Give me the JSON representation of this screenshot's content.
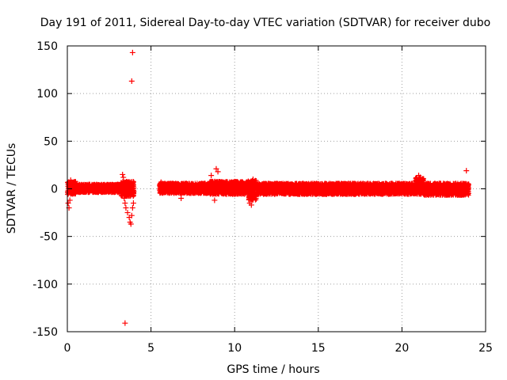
{
  "chart_data": {
    "type": "scatter",
    "title": "Day 191 of 2011, Sidereal Day-to-day VTEC variation (SDTVAR) for receiver dubo",
    "xlabel": "GPS time / hours",
    "ylabel": "SDTVAR / TECUs",
    "xlim": [
      0,
      25
    ],
    "ylim": [
      -150,
      150
    ],
    "xticks": [
      0,
      5,
      10,
      15,
      20,
      25
    ],
    "yticks": [
      -150,
      -100,
      -50,
      0,
      50,
      100,
      150
    ],
    "grid": true,
    "marker": "+",
    "color": "#ff0000",
    "series": [
      {
        "name": "SDTVAR",
        "bands": [
          {
            "x": [
              0.0,
              0.5
            ],
            "ymin": -6,
            "ymax": 8
          },
          {
            "x": [
              0.5,
              3.2
            ],
            "ymin": -4,
            "ymax": 5
          },
          {
            "x": [
              3.2,
              4.0
            ],
            "ymin": -8,
            "ymax": 8
          },
          {
            "x": [
              5.5,
              8.5
            ],
            "ymin": -5,
            "ymax": 6
          },
          {
            "x": [
              8.5,
              10.8
            ],
            "ymin": -6,
            "ymax": 8
          },
          {
            "x": [
              10.8,
              11.3
            ],
            "ymin": -12,
            "ymax": 9
          },
          {
            "x": [
              11.3,
              20.8
            ],
            "ymin": -6,
            "ymax": 6
          },
          {
            "x": [
              20.8,
              21.3
            ],
            "ymin": -6,
            "ymax": 12
          },
          {
            "x": [
              21.3,
              24.0
            ],
            "ymin": -7,
            "ymax": 6
          }
        ],
        "points": [
          [
            0.05,
            -15
          ],
          [
            0.1,
            -20
          ],
          [
            0.15,
            -12
          ],
          [
            0.2,
            9
          ],
          [
            0.25,
            7
          ],
          [
            3.3,
            15
          ],
          [
            3.35,
            12
          ],
          [
            3.4,
            -10
          ],
          [
            3.45,
            -15
          ],
          [
            3.5,
            -20
          ],
          [
            3.6,
            -25
          ],
          [
            3.7,
            -30
          ],
          [
            3.75,
            -35
          ],
          [
            3.8,
            -37
          ],
          [
            3.85,
            -28
          ],
          [
            3.9,
            -20
          ],
          [
            3.95,
            -15
          ],
          [
            5.6,
            7
          ],
          [
            6.8,
            -10
          ],
          [
            8.6,
            14
          ],
          [
            8.8,
            -12
          ],
          [
            8.9,
            21
          ],
          [
            9.0,
            18
          ],
          [
            10.9,
            -15
          ],
          [
            11.0,
            -17
          ],
          [
            11.1,
            10
          ],
          [
            21.0,
            14
          ],
          [
            21.1,
            12
          ],
          [
            23.1,
            5
          ],
          [
            3.9,
            143
          ],
          [
            3.85,
            113
          ],
          [
            3.45,
            -141
          ],
          [
            23.85,
            19
          ]
        ]
      }
    ]
  }
}
